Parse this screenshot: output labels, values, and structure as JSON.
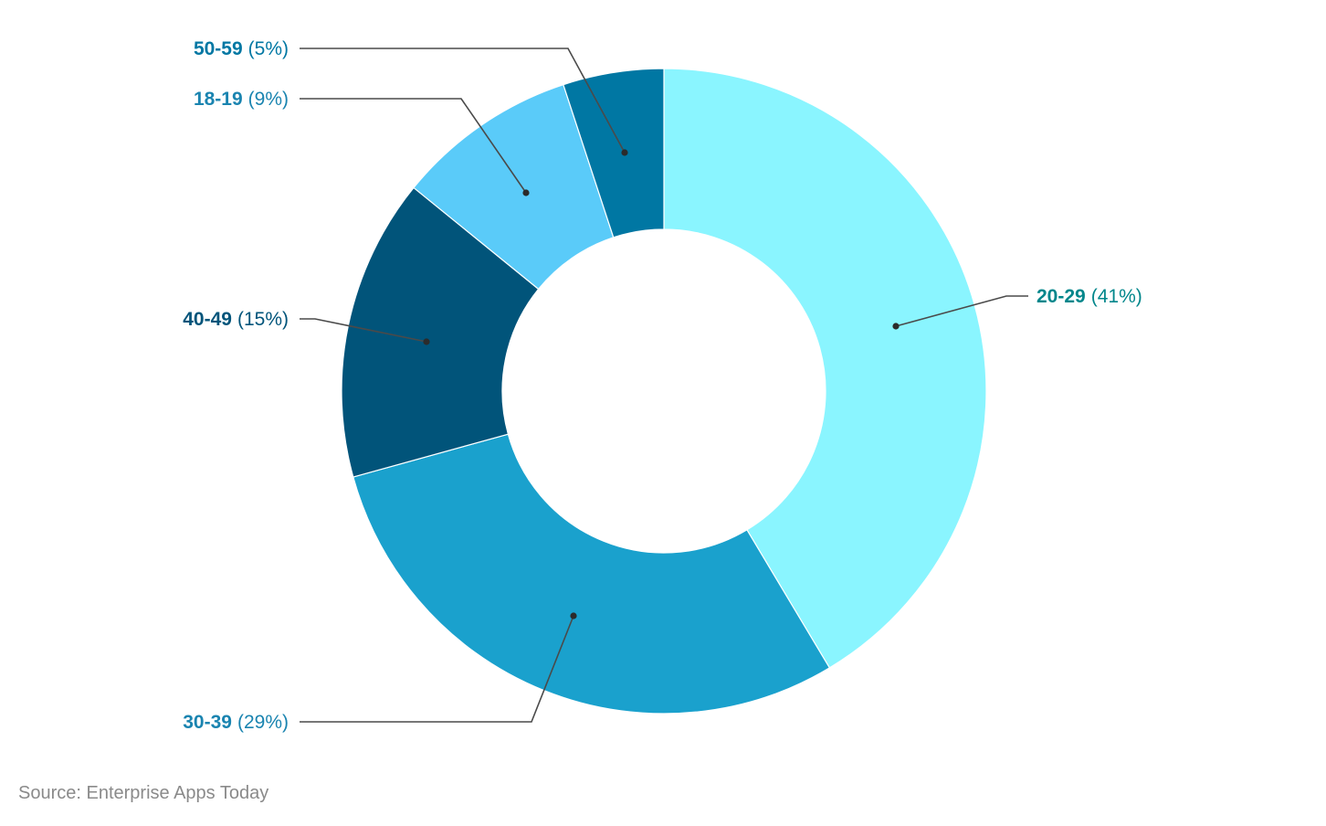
{
  "chart_data": {
    "type": "pie",
    "variant": "donut",
    "slices": [
      {
        "label": "20-29",
        "value": 41,
        "pct_text": "(41%)",
        "color": "#8af5ff",
        "label_color": "#00868b"
      },
      {
        "label": "30-39",
        "value": 29,
        "pct_text": "(29%)",
        "color": "#1aa1cd",
        "label_color": "#1a84b0"
      },
      {
        "label": "40-49",
        "value": 15,
        "pct_text": "(15%)",
        "color": "#01547a",
        "label_color": "#01547a"
      },
      {
        "label": "18-19",
        "value": 9,
        "pct_text": "(9%)",
        "color": "#5acbf9",
        "label_color": "#1a84b0"
      },
      {
        "label": "50-59",
        "value": 5,
        "pct_text": "(5%)",
        "color": "#0077a3",
        "label_color": "#0077a3"
      }
    ],
    "start_angle_deg": 0,
    "direction": "clockwise",
    "legend": "none"
  },
  "source": "Source: Enterprise Apps Today",
  "colors": {
    "leader_line": "#4a4a4a",
    "source_text": "#8a8a8a"
  }
}
